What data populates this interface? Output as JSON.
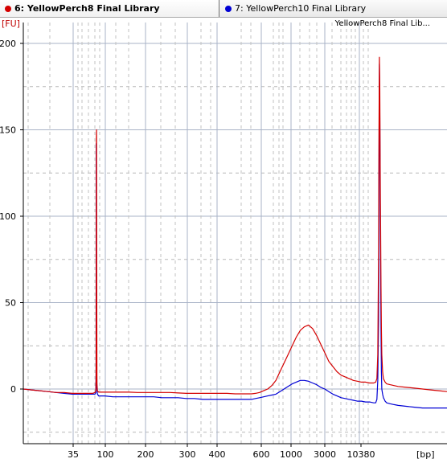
{
  "tabs": [
    {
      "label": "6: YellowPerch8 Final Library",
      "color": "#d40000",
      "active": true
    },
    {
      "label": "7: YellowPerch10 Final Library",
      "color": "#0000d4",
      "active": false
    }
  ],
  "chart_data": {
    "type": "line",
    "title": "YellowPerch8 Final Lib...",
    "ylabel": "[FU]",
    "xlabel": "[bp]",
    "ylim": [
      -31,
      212
    ],
    "yticks": [
      0,
      50,
      100,
      150,
      200
    ],
    "xticks": [
      "35",
      "100",
      "200",
      "300",
      "400",
      "600",
      "1000",
      "3000",
      "10380"
    ],
    "grid": true,
    "series": [
      {
        "name": "YellowPerch8 Final Library",
        "color": "#d40000",
        "x": [
          0,
          100,
          200,
          300,
          400,
          500,
          600,
          700,
          800,
          850,
          880,
          890,
          893,
          895,
          897,
          899,
          901,
          904,
          910,
          925,
          950,
          1000,
          1100,
          1200,
          1300,
          1400,
          1500,
          1600,
          1700,
          1800,
          1900,
          2000,
          2100,
          2200,
          2300,
          2400,
          2500,
          2600,
          2700,
          2800,
          2850,
          2900,
          2950,
          3000,
          3050,
          3100,
          3150,
          3200,
          3250,
          3300,
          3350,
          3400,
          3450,
          3500,
          3550,
          3600,
          3650,
          3700,
          3750,
          3800,
          3850,
          3900,
          3950,
          4000,
          4050,
          4100,
          4150,
          4200,
          4250,
          4300,
          4325,
          4340,
          4350,
          4360,
          4365,
          4370,
          4375,
          4380,
          4385,
          4390,
          4395,
          4400,
          4410,
          4420,
          4430,
          4440,
          4460,
          4500,
          4550,
          4600,
          4700,
          4800,
          4900,
          5000,
          5100,
          5200
        ],
        "y": [
          0,
          -0.5,
          -1,
          -1.5,
          -2,
          -2,
          -2.5,
          -2.5,
          -2.5,
          -2.5,
          -2,
          -1,
          5,
          40,
          145,
          150,
          70,
          3,
          -1,
          -1.8,
          -1.8,
          -1.8,
          -1.8,
          -1.8,
          -1.8,
          -2,
          -2,
          -2,
          -2,
          -2,
          -2.3,
          -2.5,
          -2.5,
          -2.5,
          -2.5,
          -2.5,
          -2.5,
          -2.8,
          -2.8,
          -2.8,
          -2.5,
          -2,
          -1,
          0,
          2,
          5,
          10,
          15,
          20,
          25,
          30,
          34,
          36,
          37,
          35,
          31,
          26,
          21,
          16,
          13,
          10,
          8,
          7,
          6,
          5,
          4.5,
          4,
          4,
          3.5,
          3.5,
          4,
          6,
          20,
          80,
          150,
          192,
          175,
          130,
          95,
          60,
          35,
          20,
          10,
          6,
          5,
          4,
          3,
          2.5,
          2,
          1.5,
          1,
          0.5,
          0,
          -0.5,
          -1,
          -1.5
        ]
      },
      {
        "name": "YellowPerch10 Final Library",
        "color": "#0000d4",
        "x": [
          0,
          100,
          200,
          300,
          400,
          500,
          600,
          700,
          800,
          850,
          880,
          890,
          893,
          895,
          897,
          899,
          901,
          904,
          910,
          925,
          950,
          1000,
          1100,
          1200,
          1300,
          1400,
          1500,
          1600,
          1700,
          1800,
          1900,
          2000,
          2100,
          2200,
          2300,
          2400,
          2500,
          2600,
          2700,
          2800,
          2850,
          2900,
          2950,
          3000,
          3050,
          3100,
          3150,
          3200,
          3250,
          3300,
          3350,
          3400,
          3450,
          3500,
          3550,
          3600,
          3650,
          3700,
          3750,
          3800,
          3850,
          3900,
          3950,
          4000,
          4050,
          4100,
          4150,
          4200,
          4250,
          4300,
          4325,
          4340,
          4350,
          4360,
          4365,
          4370,
          4375,
          4380,
          4385,
          4390,
          4395,
          4400,
          4410,
          4420,
          4430,
          4440,
          4460,
          4500,
          4550,
          4600,
          4700,
          4800,
          4900,
          5000,
          5100,
          5200
        ],
        "y": [
          0,
          -0.5,
          -1,
          -1.5,
          -2,
          -2.5,
          -3,
          -3,
          -3,
          -3,
          -3,
          -2,
          10,
          142,
          90,
          40,
          12,
          0,
          -3,
          -4,
          -4,
          -4,
          -4.5,
          -4.5,
          -4.5,
          -4.5,
          -4.5,
          -4.5,
          -5,
          -5,
          -5,
          -5.5,
          -5.5,
          -6,
          -6,
          -6,
          -6,
          -6,
          -6,
          -6,
          -5.5,
          -5,
          -4.5,
          -4,
          -3.5,
          -3,
          -1.5,
          0,
          1.5,
          3,
          4,
          5,
          5,
          4.5,
          3.5,
          2.5,
          1,
          0,
          -1.5,
          -3,
          -4,
          -5,
          -5.5,
          -6,
          -6.5,
          -7,
          -7,
          -7.5,
          -7.5,
          -8,
          -8,
          -6,
          5,
          40,
          130,
          188,
          160,
          110,
          70,
          35,
          10,
          0,
          -3,
          -5,
          -6,
          -7,
          -8,
          -8.5,
          -9,
          -9.5,
          -10,
          -10.5,
          -11,
          -11,
          -11,
          -11
        ]
      }
    ]
  }
}
